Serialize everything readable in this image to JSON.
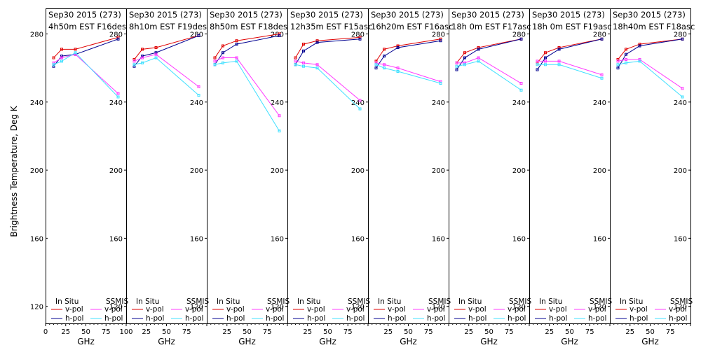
{
  "ylabel": "Brightness Temperature, Deg K",
  "xlabel": "GHz",
  "xticks": [
    0,
    25,
    50,
    75,
    100
  ],
  "yticks": [
    120,
    160,
    200,
    240,
    280
  ],
  "legend": {
    "insitu": "In Situ",
    "ssmis": "SSMIS",
    "vpol": "v-pol",
    "hpol": "h-pol"
  },
  "colors": {
    "insitu_v": "#e00000",
    "insitu_h": "#000090",
    "ssmis_v": "#ff3cff",
    "ssmis_h": "#40e0ff"
  },
  "chart_data": [
    {
      "type": "line",
      "title": "Sep30 2015 (273)",
      "subtitle": "4h50m EST F16des",
      "xlim": [
        0,
        100
      ],
      "ylim": [
        110,
        295
      ],
      "x": [
        10,
        20,
        37,
        90
      ],
      "series": [
        {
          "name": "In Situ v-pol",
          "values": [
            266,
            271,
            271,
            278
          ]
        },
        {
          "name": "In Situ h-pol",
          "values": [
            261,
            267,
            268,
            277
          ]
        },
        {
          "name": "SSMIS v-pol",
          "values": [
            263,
            266,
            268,
            245
          ]
        },
        {
          "name": "SSMIS h-pol",
          "values": [
            262,
            264,
            269,
            243
          ]
        }
      ]
    },
    {
      "type": "line",
      "title": "Sep30 2015 (273)",
      "subtitle": "8h10m EST F19des",
      "xlim": [
        0,
        100
      ],
      "ylim": [
        110,
        295
      ],
      "x": [
        10,
        20,
        37,
        90
      ],
      "series": [
        {
          "name": "In Situ v-pol",
          "values": [
            265,
            271,
            272,
            279
          ]
        },
        {
          "name": "In Situ h-pol",
          "values": [
            261,
            267,
            269,
            279
          ]
        },
        {
          "name": "SSMIS v-pol",
          "values": [
            264,
            266,
            268,
            249
          ]
        },
        {
          "name": "SSMIS h-pol",
          "values": [
            262,
            263,
            266,
            244
          ]
        }
      ]
    },
    {
      "type": "line",
      "title": "Sep30 2015 (273)",
      "subtitle": "8h50m EST F18des",
      "xlim": [
        0,
        100
      ],
      "ylim": [
        110,
        295
      ],
      "x": [
        10,
        20,
        37,
        90
      ],
      "series": [
        {
          "name": "In Situ v-pol",
          "values": [
            266,
            273,
            276,
            280
          ]
        },
        {
          "name": "In Situ h-pol",
          "values": [
            262,
            269,
            274,
            279
          ]
        },
        {
          "name": "SSMIS v-pol",
          "values": [
            264,
            266,
            266,
            232
          ]
        },
        {
          "name": "SSMIS h-pol",
          "values": [
            262,
            263,
            264,
            223
          ]
        }
      ]
    },
    {
      "type": "line",
      "title": "Sep30 2015 (273)",
      "subtitle": "12h35m EST F15asc",
      "xlim": [
        0,
        100
      ],
      "ylim": [
        110,
        295
      ],
      "x": [
        10,
        20,
        37,
        90
      ],
      "series": [
        {
          "name": "In Situ v-pol",
          "values": [
            266,
            274,
            276,
            278
          ]
        },
        {
          "name": "In Situ h-pol",
          "values": [
            262,
            270,
            275,
            277
          ]
        },
        {
          "name": "SSMIS v-pol",
          "values": [
            264,
            263,
            262,
            241
          ]
        },
        {
          "name": "SSMIS h-pol",
          "values": [
            262,
            261,
            260,
            236
          ]
        }
      ]
    },
    {
      "type": "line",
      "title": "Sep30 2015 (273)",
      "subtitle": "16h20m EST F16asc",
      "xlim": [
        0,
        100
      ],
      "ylim": [
        110,
        295
      ],
      "x": [
        10,
        20,
        37,
        90
      ],
      "series": [
        {
          "name": "In Situ v-pol",
          "values": [
            264,
            271,
            273,
            277
          ]
        },
        {
          "name": "In Situ h-pol",
          "values": [
            260,
            267,
            272,
            276
          ]
        },
        {
          "name": "SSMIS v-pol",
          "values": [
            263,
            262,
            260,
            252
          ]
        },
        {
          "name": "SSMIS h-pol",
          "values": [
            262,
            260,
            258,
            251
          ]
        }
      ]
    },
    {
      "type": "line",
      "title": "Sep30 2015 (273)",
      "subtitle": "18h 0m EST F17asc",
      "xlim": [
        0,
        100
      ],
      "ylim": [
        110,
        295
      ],
      "x": [
        10,
        20,
        37,
        90
      ],
      "series": [
        {
          "name": "In Situ v-pol",
          "values": [
            263,
            269,
            272,
            277
          ]
        },
        {
          "name": "In Situ h-pol",
          "values": [
            259,
            266,
            271,
            277
          ]
        },
        {
          "name": "SSMIS v-pol",
          "values": [
            263,
            263,
            266,
            251
          ]
        },
        {
          "name": "SSMIS h-pol",
          "values": [
            261,
            262,
            264,
            247
          ]
        }
      ]
    },
    {
      "type": "line",
      "title": "Sep30 2015 (273)",
      "subtitle": "18h 0m EST F19asc",
      "xlim": [
        0,
        100
      ],
      "ylim": [
        110,
        295
      ],
      "x": [
        10,
        20,
        37,
        90
      ],
      "series": [
        {
          "name": "In Situ v-pol",
          "values": [
            263,
            269,
            272,
            277
          ]
        },
        {
          "name": "In Situ h-pol",
          "values": [
            259,
            266,
            271,
            277
          ]
        },
        {
          "name": "SSMIS v-pol",
          "values": [
            264,
            264,
            264,
            256
          ]
        },
        {
          "name": "SSMIS h-pol",
          "values": [
            262,
            262,
            262,
            254
          ]
        }
      ]
    },
    {
      "type": "line",
      "title": "Sep30 2015 (273)",
      "subtitle": "18h40m EST F18asc",
      "xlim": [
        0,
        100
      ],
      "ylim": [
        110,
        295
      ],
      "x": [
        10,
        20,
        37,
        90
      ],
      "series": [
        {
          "name": "In Situ v-pol",
          "values": [
            265,
            271,
            274,
            277
          ]
        },
        {
          "name": "In Situ h-pol",
          "values": [
            260,
            268,
            273,
            277
          ]
        },
        {
          "name": "SSMIS v-pol",
          "values": [
            264,
            265,
            265,
            248
          ]
        },
        {
          "name": "SSMIS h-pol",
          "values": [
            262,
            263,
            264,
            243
          ]
        }
      ]
    }
  ]
}
